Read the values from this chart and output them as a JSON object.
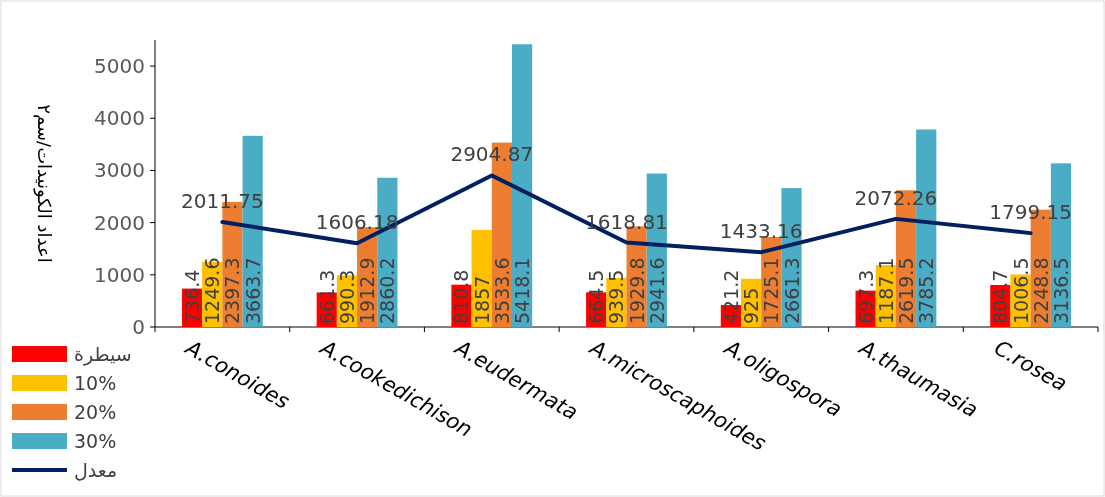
{
  "chart_data": {
    "type": "bar",
    "ylabel": "اعداد الكونيدات/سم٢",
    "categories": [
      "A.conoides",
      "A.cookedichison",
      "A.eudermata",
      "A.microscaphoides",
      "A.oligospora",
      "A.thaumasia",
      "C.rosea"
    ],
    "series": [
      {
        "name": "سيطرة",
        "color": "#ff0000",
        "values": [
          736.4,
          661.3,
          810.8,
          664.5,
          421.2,
          697.3,
          804.7
        ]
      },
      {
        "name": "10%",
        "color": "#ffc000",
        "values": [
          1249.6,
          990.3,
          1857,
          939.5,
          925,
          1187.1,
          1006.5
        ]
      },
      {
        "name": "20%",
        "color": "#ed7d31",
        "values": [
          2397.3,
          1912.9,
          3533.6,
          1929.8,
          1725.1,
          2619.5,
          2248.8
        ]
      },
      {
        "name": "30%",
        "color": "#4bacc6",
        "values": [
          3663.7,
          2860.2,
          5418.1,
          2941.6,
          2661.3,
          3785.2,
          3136.5
        ]
      },
      {
        "name": "معدل",
        "color": "#002060",
        "type": "line",
        "values": [
          2011.75,
          1606.18,
          2904.87,
          1618.81,
          1433.16,
          2072.26,
          1799.15
        ]
      }
    ],
    "ylim": [
      0,
      5500
    ],
    "yticks": [
      0,
      1000,
      2000,
      3000,
      4000,
      5000
    ],
    "data_labels": true,
    "legend": "bottom left"
  }
}
